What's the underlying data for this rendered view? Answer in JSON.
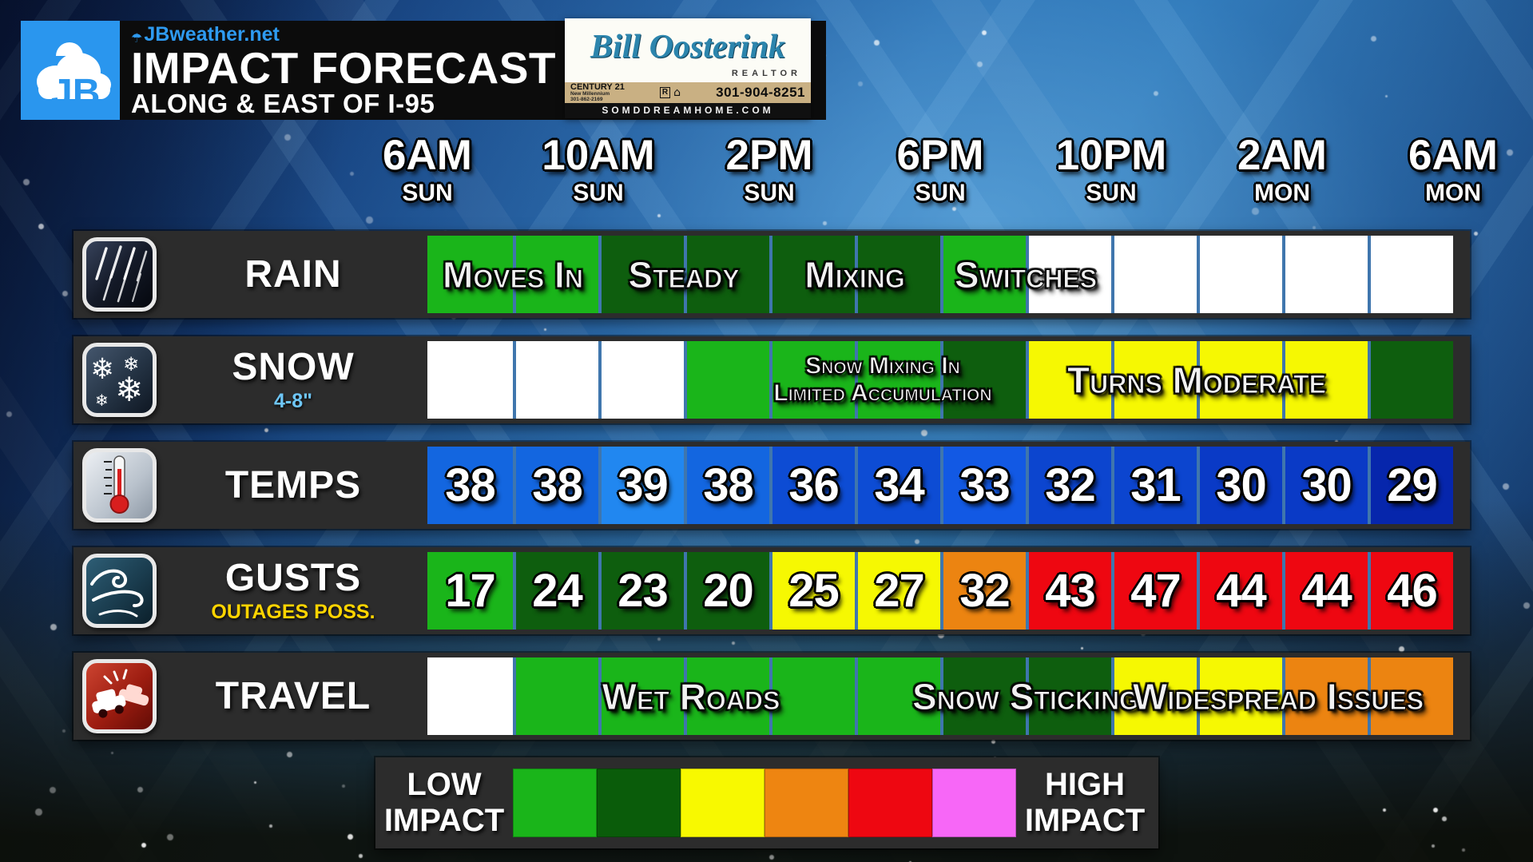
{
  "header": {
    "site": "JBweather.net",
    "title": "IMPACT FORECAST",
    "subtitle": "ALONG & EAST OF I-95",
    "logo_initials": "JB",
    "logo_color": "#2a96ee"
  },
  "sponsor": {
    "name": "Bill Oosterink",
    "role": "REALTOR",
    "agency": "CENTURY 21",
    "agency_sub": "New Millennium",
    "agency_phone": "301-862-2169",
    "phone": "301-904-8251",
    "website": "SOMDDREAMHOME.COM"
  },
  "timeline": {
    "times": [
      {
        "t": "6AM",
        "d": "SUN"
      },
      {
        "t": "10AM",
        "d": "SUN"
      },
      {
        "t": "2PM",
        "d": "SUN"
      },
      {
        "t": "6PM",
        "d": "SUN"
      },
      {
        "t": "10PM",
        "d": "SUN"
      },
      {
        "t": "2AM",
        "d": "MON"
      },
      {
        "t": "6AM",
        "d": "MON"
      }
    ]
  },
  "palette": {
    "none": "#ffffff",
    "low_green": "#1ab51a",
    "dark_green": "#0e5e0e",
    "yellow": "#f6f802",
    "orange": "#ec8411",
    "red": "#ee0711",
    "violet": "#f767f7",
    "divider_blue": "#3f76ad",
    "band_gray": "#2c2c2c"
  },
  "rows": [
    {
      "id": "rain",
      "label": "RAIN",
      "sublabel": "",
      "sub_color": "",
      "icon": "rain-icon",
      "cells": [
        {
          "c": "#1ab51a"
        },
        {
          "c": "#1ab51a"
        },
        {
          "c": "#0e5e0e"
        },
        {
          "c": "#0e5e0e"
        },
        {
          "c": "#0e5e0e"
        },
        {
          "c": "#0e5e0e"
        },
        {
          "c": "#1ab51a"
        },
        {
          "c": "#ffffff"
        },
        {
          "c": "#ffffff"
        },
        {
          "c": "#ffffff"
        },
        {
          "c": "#ffffff"
        },
        {
          "c": "#ffffff"
        }
      ],
      "overlays": [
        {
          "text": "Moves In",
          "center": 642
        },
        {
          "text": "Steady",
          "center": 856
        },
        {
          "text": "Mixing",
          "center": 1070
        },
        {
          "text": "Switches",
          "center": 1284
        }
      ]
    },
    {
      "id": "snow",
      "label": "SNOW",
      "sublabel": "4-8\"",
      "sub_color": "#6ec6f7",
      "icon": "snow-icon",
      "cells": [
        {
          "c": "#ffffff"
        },
        {
          "c": "#ffffff"
        },
        {
          "c": "#ffffff"
        },
        {
          "c": "#1ab51a"
        },
        {
          "c": "#1ab51a"
        },
        {
          "c": "#1ab51a"
        },
        {
          "c": "#0e5e0e"
        },
        {
          "c": "#f6f802"
        },
        {
          "c": "#f6f802"
        },
        {
          "c": "#f6f802"
        },
        {
          "c": "#f6f802"
        },
        {
          "c": "#0e5e0e"
        }
      ],
      "overlays": [
        {
          "lines": [
            "Snow Mixing In",
            "Limited Accumulation"
          ],
          "center": 1105
        },
        {
          "text": "Turns Moderate",
          "center": 1498
        }
      ]
    },
    {
      "id": "temps",
      "label": "TEMPS",
      "sublabel": "",
      "sub_color": "",
      "icon": "thermometer-icon",
      "cells": [
        {
          "c": "#1366e0",
          "t": "38"
        },
        {
          "c": "#1366e0",
          "t": "38"
        },
        {
          "c": "#2187f0",
          "t": "39"
        },
        {
          "c": "#1366e0",
          "t": "38"
        },
        {
          "c": "#0d4cd4",
          "t": "36"
        },
        {
          "c": "#0d4cd4",
          "t": "34"
        },
        {
          "c": "#1259e4",
          "t": "33"
        },
        {
          "c": "#0c45cf",
          "t": "32"
        },
        {
          "c": "#0c45cf",
          "t": "31"
        },
        {
          "c": "#0a3ac6",
          "t": "30"
        },
        {
          "c": "#0a3ac6",
          "t": "30"
        },
        {
          "c": "#0626ac",
          "t": "29"
        }
      ],
      "overlays": []
    },
    {
      "id": "gusts",
      "label": "GUSTS",
      "sublabel": "OUTAGES POSS.",
      "sub_color": "#ffd400",
      "icon": "wind-icon",
      "cells": [
        {
          "c": "#1ab51a",
          "t": "17"
        },
        {
          "c": "#0e5e0e",
          "t": "24"
        },
        {
          "c": "#0e5e0e",
          "t": "23"
        },
        {
          "c": "#0e5e0e",
          "t": "20"
        },
        {
          "c": "#f6f802",
          "t": "25"
        },
        {
          "c": "#f6f802",
          "t": "27"
        },
        {
          "c": "#ec8411",
          "t": "32"
        },
        {
          "c": "#ee0711",
          "t": "43"
        },
        {
          "c": "#ee0711",
          "t": "47"
        },
        {
          "c": "#ee0711",
          "t": "44"
        },
        {
          "c": "#ee0711",
          "t": "44"
        },
        {
          "c": "#ee0711",
          "t": "46"
        }
      ],
      "overlays": []
    },
    {
      "id": "travel",
      "label": "TRAVEL",
      "sublabel": "",
      "sub_color": "",
      "icon": "car-crash-icon",
      "cells": [
        {
          "c": "#ffffff"
        },
        {
          "c": "#1ab51a"
        },
        {
          "c": "#1ab51a"
        },
        {
          "c": "#1ab51a"
        },
        {
          "c": "#1ab51a"
        },
        {
          "c": "#1ab51a"
        },
        {
          "c": "#0e5e0e"
        },
        {
          "c": "#0e5e0e"
        },
        {
          "c": "#f6f802"
        },
        {
          "c": "#f6f802"
        },
        {
          "c": "#ec8411"
        },
        {
          "c": "#ec8411"
        }
      ],
      "overlays": [
        {
          "text": "Wet Roads",
          "center": 865
        },
        {
          "text": "Snow Sticking",
          "center": 1284
        },
        {
          "text": "Widespread Issues",
          "center": 1600
        }
      ]
    }
  ],
  "legend": {
    "low_line1": "LOW",
    "low_line2": "IMPACT",
    "high_line1": "HIGH",
    "high_line2": "IMPACT",
    "colors": [
      "#1ab51a",
      "#0a5c0a",
      "#f8f900",
      "#ee8511",
      "#ee0711",
      "#f767f7"
    ]
  },
  "chart_data": {
    "type": "heatmap",
    "title": "IMPACT FORECAST",
    "subtitle": "ALONG & EAST OF I-95",
    "x_ticks_shown": [
      "6AM SUN",
      "10AM SUN",
      "2PM SUN",
      "6PM SUN",
      "10PM SUN",
      "2AM MON",
      "6AM MON"
    ],
    "cell_interval_hours": 2,
    "impact_scale_note": "0=none(white),1=green,2=dark green,3=yellow,4=orange,5=red,6=violet; legend runs LOW IMPACT to HIGH IMPACT",
    "series": [
      {
        "name": "RAIN",
        "impact_levels": [
          1,
          1,
          2,
          2,
          2,
          2,
          1,
          0,
          0,
          0,
          0,
          0
        ],
        "annotations": [
          "Moves In",
          "Steady",
          "Mixing",
          "Switches"
        ]
      },
      {
        "name": "SNOW",
        "amount": "4-8\"",
        "impact_levels": [
          0,
          0,
          0,
          1,
          1,
          1,
          2,
          3,
          3,
          3,
          3,
          2
        ],
        "annotations": [
          "Snow Mixing In Limited Accumulation",
          "Turns Moderate"
        ]
      },
      {
        "name": "TEMPS",
        "values": [
          38,
          38,
          39,
          38,
          36,
          34,
          33,
          32,
          31,
          30,
          30,
          29
        ]
      },
      {
        "name": "GUSTS",
        "note": "OUTAGES POSS.",
        "values": [
          17,
          24,
          23,
          20,
          25,
          27,
          32,
          43,
          47,
          44,
          44,
          46
        ],
        "impact_levels": [
          1,
          2,
          2,
          2,
          3,
          3,
          4,
          5,
          5,
          5,
          5,
          5
        ]
      },
      {
        "name": "TRAVEL",
        "impact_levels": [
          0,
          1,
          1,
          1,
          1,
          1,
          2,
          2,
          3,
          3,
          4,
          4
        ],
        "annotations": [
          "Wet Roads",
          "Snow Sticking",
          "Widespread Issues"
        ]
      }
    ],
    "legend": {
      "left": "LOW IMPACT",
      "right": "HIGH IMPACT",
      "colors": [
        "#1ab51a",
        "#0a5c0a",
        "#f8f900",
        "#ee8511",
        "#ee0711",
        "#f767f7"
      ]
    }
  }
}
